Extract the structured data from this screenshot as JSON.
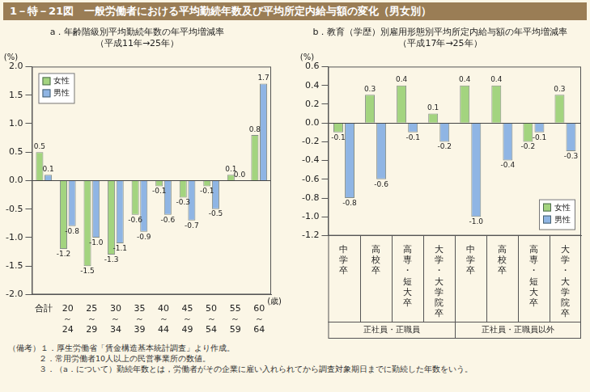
{
  "title": "1－特－21図　一般労働者における平均勤続年数及び平均所定内給与額の変化（男女別）",
  "notes": [
    "（備考）１．厚生労働省「賃金構造基本統計調査」より作成。",
    "２．常用労働者10人以上の民営事業所の数値。",
    "３．（a．について）勤続年数とは，労働者がその企業に雇い入れられてから調査対象期日までに勤続した年数をいう。"
  ],
  "chart_data": [
    {
      "type": "bar",
      "title": "a．年齢階級別平均勤続年数の年平均増減率",
      "subtitle": "（平成11年→25年）",
      "y_label": "(%)",
      "x_label": "(歳)",
      "categories": [
        "合計",
        "20～24",
        "25～29",
        "30～34",
        "35～39",
        "40～44",
        "45～49",
        "50～54",
        "55～59",
        "60～64"
      ],
      "series": [
        {
          "name": "女性",
          "color": "#a3d47f",
          "values": [
            0.5,
            -1.2,
            -1.5,
            -1.3,
            -0.6,
            -0.1,
            -0.3,
            -0.1,
            0.1,
            0.8
          ],
          "value_labels": [
            "0.5",
            "-1.2",
            "-1.5",
            "-1.3",
            "-0.6",
            "-0.1",
            "-0.3",
            "-0.1",
            "0.1",
            "0.8"
          ]
        },
        {
          "name": "男性",
          "color": "#8fb5e4",
          "values": [
            0.1,
            -0.8,
            -1.0,
            -1.1,
            -0.9,
            -0.6,
            -0.7,
            -0.5,
            0.0,
            1.7
          ],
          "value_labels": [
            "0.1",
            "-0.8",
            "-1.0",
            "-1.1",
            "-0.9",
            "-0.6",
            "-0.7",
            "-0.5",
            "0.0",
            "1.7"
          ]
        }
      ],
      "ylim": [
        -2,
        2
      ],
      "yticks": [
        {
          "value": -2,
          "label": "-2.0"
        },
        -1.5,
        {
          "value": -1,
          "label": "-1.0"
        },
        -0.5,
        {
          "value": 0,
          "label": "0.0"
        },
        0.5,
        {
          "value": 1,
          "label": "1.0"
        },
        1.5,
        {
          "value": 2,
          "label": "2.0"
        }
      ],
      "grid": false,
      "legend": "top-left",
      "data_labels": true
    },
    {
      "type": "bar",
      "title": "b．教育（学歴）別雇用形態別平均所定内給与額の年平均増減率",
      "subtitle": "（平成17年→25年）",
      "y_label": "(%)",
      "groups": [
        {
          "name": "正社員・正職員",
          "categories": [
            "中学卒",
            "高校卒",
            "高専・短大卒",
            "大学・大学院卒"
          ]
        },
        {
          "name": "正社員・正職員以外",
          "categories": [
            "中学卒",
            "高校卒",
            "高専・短大卒",
            "大学・大学院卒"
          ]
        }
      ],
      "series": [
        {
          "name": "女性",
          "color": "#a3d47f",
          "values": [
            -0.1,
            0.3,
            0.4,
            0.1,
            0.4,
            0.4,
            -0.2,
            0.3
          ],
          "value_labels": [
            "-0.1",
            "0.3",
            "0.4",
            "0.1",
            "0.4",
            "0.4",
            "-0.2",
            "0.3"
          ]
        },
        {
          "name": "男性",
          "color": "#8fb5e4",
          "values": [
            -0.8,
            -0.6,
            -0.1,
            -0.2,
            -1.0,
            -0.4,
            -0.1,
            -0.3
          ],
          "value_labels": [
            "-0.8",
            "-0.6",
            "-0.1",
            "-0.2",
            "-1.0",
            "-0.4",
            "-0.1",
            "-0.3"
          ]
        }
      ],
      "ylim": [
        -1.2,
        0.6
      ],
      "yticks": [
        {
          "value": -1.2,
          "label": "-1.2"
        },
        {
          "value": -1,
          "label": "-1.0"
        },
        -0.8,
        -0.6,
        -0.4,
        -0.2,
        {
          "value": 0,
          "label": "0.0"
        },
        0.2,
        0.4,
        0.6
      ],
      "grid": false,
      "legend": "bottom-right",
      "data_labels": true
    }
  ]
}
